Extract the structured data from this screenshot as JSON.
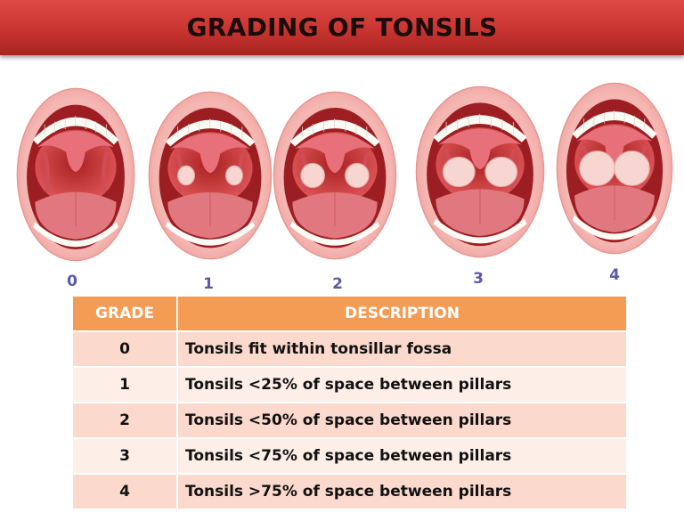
{
  "header": {
    "title": "GRADING OF TONSILS"
  },
  "illustrations": {
    "labels": [
      "0",
      "1",
      "2",
      "3",
      "4"
    ],
    "tonsil_fill_levels": [
      0,
      0.25,
      0.5,
      0.75,
      1.0
    ]
  },
  "table": {
    "headers": {
      "grade": "GRADE",
      "description": "DESCRIPTION"
    },
    "rows": [
      {
        "grade": "0",
        "description": "Tonsils fit within tonsillar fossa"
      },
      {
        "grade": "1",
        "description": "Tonsils <25% of space between pillars"
      },
      {
        "grade": "2",
        "description": "Tonsils <50% of space between pillars"
      },
      {
        "grade": "3",
        "description": "Tonsils <75% of space between pillars"
      },
      {
        "grade": "4",
        "description": "Tonsils >75% of space between pillars"
      }
    ]
  },
  "colors": {
    "banner": "#c93430",
    "header_row": "#f49b54",
    "row_odd": "#fbd9cc",
    "row_even": "#fdeee8",
    "grade_label": "#5a58a8"
  }
}
